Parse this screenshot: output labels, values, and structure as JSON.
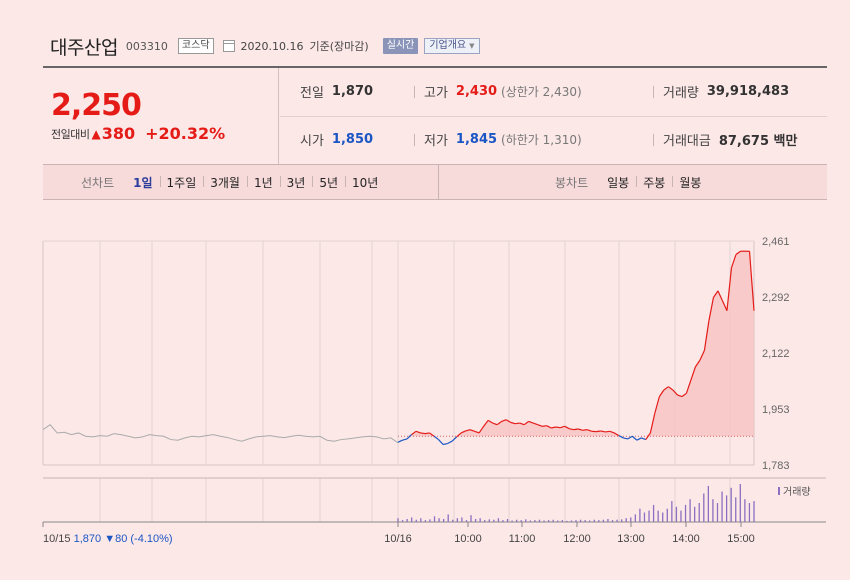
{
  "header": {
    "name": "대주산업",
    "code": "003310",
    "market": "코스닥",
    "date": "2020.10.16",
    "basis": "기준(장마감)",
    "realtime": "실시간",
    "company_info": "기업개요"
  },
  "price": {
    "current": "2,250",
    "change_label": "전일대비",
    "change": "380",
    "rate": "+20.32%"
  },
  "stats": {
    "prev_label": "전일",
    "prev": "1,870",
    "high_label": "고가",
    "high": "2,430",
    "upper_limit": "(상한가 2,430)",
    "volume_label": "거래량",
    "volume": "39,918,483",
    "open_label": "시가",
    "open": "1,850",
    "low_label": "저가",
    "low": "1,845",
    "lower_limit": "(하한가 1,310)",
    "amount_label": "거래대금",
    "amount": "87,675 백만"
  },
  "period": {
    "line_title": "선차트",
    "line_items": [
      "1일",
      "1주일",
      "3개월",
      "1년",
      "3년",
      "5년",
      "10년"
    ],
    "candle_title": "봉차트",
    "candle_items": [
      "일봉",
      "주봉",
      "월봉"
    ]
  },
  "colors": {
    "up": "#e41b17",
    "down": "#1a56c4",
    "fill": "#f8c4c4"
  },
  "chart_data": {
    "type": "line",
    "y_ticks": [
      "2,461",
      "2,292",
      "2,122",
      "1,953",
      "1,783"
    ],
    "y_tick_values": [
      2461,
      2292,
      2122,
      1953,
      1783
    ],
    "ylim": [
      1783,
      2461
    ],
    "x_ticks": [
      "10/16",
      "10:00",
      "11:00",
      "12:00",
      "13:00",
      "14:00",
      "15:00"
    ],
    "prev_day_label": "10/15",
    "prev_day_close": "1,870",
    "prev_day_change": "▼80",
    "prev_day_rate": "(-4.10%)",
    "reference_price": 1870,
    "volume_legend": "거래량",
    "series": [
      {
        "values": [
          1890,
          1905,
          1880,
          1882,
          1875,
          1880,
          1870,
          1868,
          1872,
          1870,
          1878,
          1875,
          1870,
          1865,
          1868,
          1875,
          1872,
          1870,
          1860,
          1858,
          1865,
          1870,
          1868,
          1872,
          1875,
          1870,
          1866,
          1860,
          1855,
          1862,
          1868,
          1870,
          1872,
          1868,
          1866,
          1870,
          1873,
          1870,
          1868,
          1870,
          1858,
          1855,
          1860,
          1862,
          1865,
          1868,
          1870,
          1868,
          1862,
          1865,
          1850,
          1852,
          1858,
          1862,
          1875,
          1885,
          1880,
          1878,
          1880,
          1870,
          1860,
          1845,
          1848,
          1855,
          1868,
          1880,
          1886,
          1890,
          1885,
          1880,
          1900,
          1918,
          1910,
          1905,
          1915,
          1920,
          1912,
          1908,
          1910,
          1905,
          1915,
          1910,
          1905,
          1900,
          1902,
          1895,
          1898,
          1896,
          1900,
          1893,
          1890,
          1892,
          1888,
          1890,
          1885,
          1884,
          1886,
          1883,
          1885,
          1880,
          1872,
          1865,
          1862,
          1870,
          1858,
          1865,
          1860,
          1880,
          1940,
          1990,
          2010,
          2020,
          2010,
          1995,
          1990,
          2000,
          2040,
          2080,
          2100,
          2130,
          2220,
          2290,
          2310,
          2280,
          2250,
          2380,
          2420,
          2430,
          2430,
          2430,
          2250
        ]
      }
    ],
    "volume": [
      0.1,
      0.05,
      0.08,
      0.12,
      0.06,
      0.1,
      0.05,
      0.07,
      0.15,
      0.1,
      0.08,
      0.2,
      0.06,
      0.1,
      0.12,
      0.05,
      0.18,
      0.08,
      0.1,
      0.05,
      0.07,
      0.06,
      0.1,
      0.05,
      0.08,
      0.04,
      0.06,
      0.05,
      0.07,
      0.04,
      0.05,
      0.06,
      0.04,
      0.05,
      0.06,
      0.04,
      0.05,
      0.03,
      0.04,
      0.05,
      0.06,
      0.05,
      0.04,
      0.06,
      0.05,
      0.06,
      0.08,
      0.05,
      0.06,
      0.07,
      0.1,
      0.12,
      0.2,
      0.35,
      0.25,
      0.3,
      0.45,
      0.3,
      0.25,
      0.35,
      0.55,
      0.4,
      0.3,
      0.45,
      0.6,
      0.4,
      0.5,
      0.75,
      0.95,
      0.6,
      0.5,
      0.8,
      0.7,
      0.9,
      0.65,
      1.0,
      0.6,
      0.5,
      0.55
    ]
  }
}
